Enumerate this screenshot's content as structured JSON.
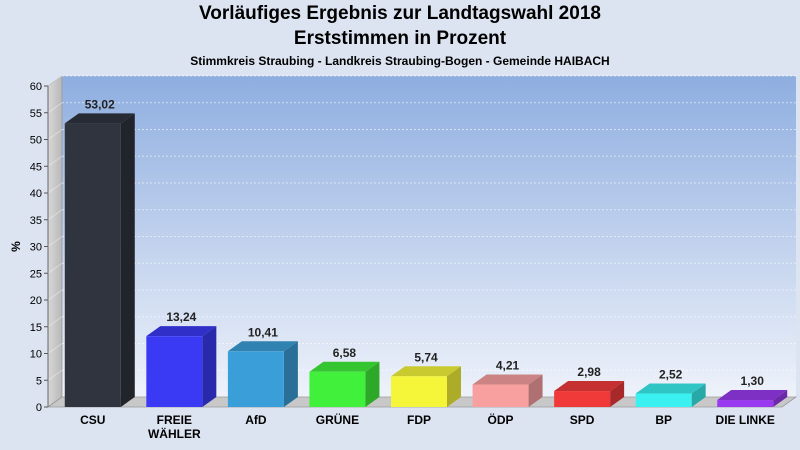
{
  "header": {
    "title": "Vorläufiges Ergebnis zur Landtagswahl 2018",
    "subtitle": "Erststimmen in Prozent",
    "region": "Stimmkreis Straubing - Landkreis Straubing-Bogen - Gemeinde HAIBACH"
  },
  "chart_data": {
    "type": "bar",
    "title": "Vorläufiges Ergebnis zur Landtagswahl 2018",
    "subtitle": "Erststimmen in Prozent",
    "ylabel": "%",
    "xlabel": "",
    "ylim": [
      0,
      60
    ],
    "yticks": [
      0,
      5,
      10,
      15,
      20,
      25,
      30,
      35,
      40,
      45,
      50,
      55,
      60
    ],
    "grid": true,
    "legend": "none",
    "categories": [
      "CSU",
      "FREIE WÄHLER",
      "AfD",
      "GRÜNE",
      "FDP",
      "ÖDP",
      "SPD",
      "BP",
      "DIE LINKE"
    ],
    "category_lines": [
      [
        "CSU"
      ],
      [
        "FREIE",
        "WÄHLER"
      ],
      [
        "AfD"
      ],
      [
        "GRÜNE"
      ],
      [
        "FDP"
      ],
      [
        "ÖDP"
      ],
      [
        "SPD"
      ],
      [
        "BP"
      ],
      [
        "DIE LINKE"
      ]
    ],
    "values": [
      53.02,
      13.24,
      10.41,
      6.58,
      5.74,
      4.21,
      2.98,
      2.52,
      1.3
    ],
    "value_labels": [
      "53,02",
      "13,24",
      "10,41",
      "6,58",
      "5,74",
      "4,21",
      "2,98",
      "2,52",
      "1,30"
    ],
    "colors": [
      "#30343e",
      "#3a3af5",
      "#3a9fd8",
      "#41f03a",
      "#f5f53a",
      "#f8a0a0",
      "#f03a3a",
      "#3af0f0",
      "#9a3af0"
    ]
  }
}
